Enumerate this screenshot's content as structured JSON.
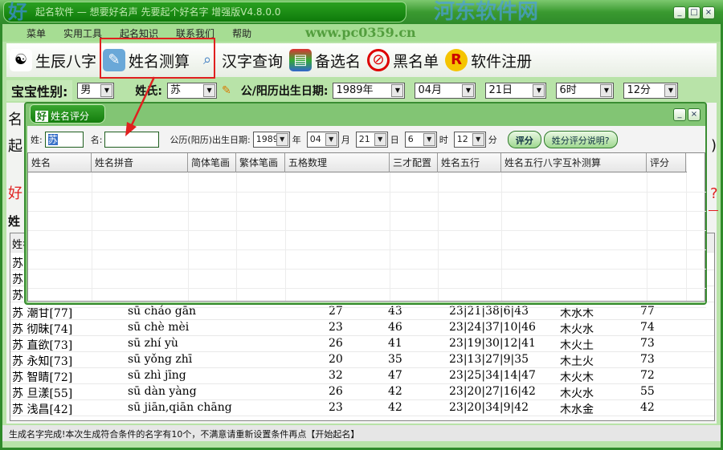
{
  "window": {
    "title": "起名软件 — 想要好名声 先要起个好名字 增强版V4.8.0.0",
    "logo_text": "好",
    "watermark": "河东软件网",
    "watermark_url": "www.pc0359.cn"
  },
  "menu": [
    "菜单",
    "实用工具",
    "起名知识",
    "联系我们",
    "帮助"
  ],
  "toolbar": [
    {
      "label": "生辰八字",
      "icon": "yin-yang-icon"
    },
    {
      "label": "姓名测算",
      "icon": "book-magnifier-icon"
    },
    {
      "label": "汉字查询",
      "icon": "magnifier-icon"
    },
    {
      "label": "备选名",
      "icon": "books-icon"
    },
    {
      "label": "黑名单",
      "icon": "prohibited-icon"
    },
    {
      "label": "软件注册",
      "icon": "registered-icon"
    }
  ],
  "form": {
    "gender_label": "宝宝性别:",
    "gender": "男",
    "surname_label": "姓氏:",
    "surname": "苏",
    "date_label": "公/阳历出生日期:",
    "year": "1989年",
    "month": "04月",
    "day": "21日",
    "hour": "6时",
    "minute": "12分"
  },
  "background": {
    "fragments": [
      "名",
      "起",
      "好",
      "姓",
      "姓名",
      ")",
      "?"
    ],
    "hidden_rows_surname": "苏"
  },
  "main_rows": [
    [
      "苏 潮甘[77]",
      "sū cháo gān",
      "27",
      "43",
      "23|21|38|6|43",
      "木水木",
      "77"
    ],
    [
      "苏 彻昧[74]",
      "sū chè mèi",
      "23",
      "46",
      "23|24|37|10|46",
      "木火水",
      "74"
    ],
    [
      "苏 直欲[73]",
      "sū zhí yù",
      "26",
      "41",
      "23|19|30|12|41",
      "木火土",
      "73"
    ],
    [
      "苏 永知[73]",
      "sū yǒng zhī",
      "20",
      "35",
      "23|13|27|9|35",
      "木土火",
      "73"
    ],
    [
      "苏 智睛[72]",
      "sū zhì jīng",
      "32",
      "47",
      "23|25|34|14|47",
      "木火木",
      "72"
    ],
    [
      "苏 旦漾[55]",
      "sū dàn yàng",
      "26",
      "42",
      "23|20|27|16|42",
      "木火水",
      "55"
    ],
    [
      "苏 浅昌[42]",
      "sū jiān,qiān chāng",
      "23",
      "42",
      "23|20|34|9|42",
      "木水金",
      "42"
    ]
  ],
  "status": "生成名字完成!本次生成符合条件的名字有10个，不满意请重新设置条件再点【开始起名】",
  "dialog": {
    "title": "姓名评分",
    "surname_label": "姓:",
    "surname": "苏",
    "name_label": "名:",
    "name": "",
    "date_label": "公历(阳历)出生日期:",
    "year": "1989",
    "year_unit": "年",
    "month": "04",
    "month_unit": "月",
    "day": "21",
    "day_unit": "日",
    "hour": "6",
    "hour_unit": "时",
    "minute": "12",
    "minute_unit": "分",
    "score_button": "评分",
    "help_button": "姓分评分说明?",
    "columns": [
      "姓名",
      "姓名拼音",
      "简体笔画",
      "繁体笔画",
      "五格数理",
      "三才配置",
      "姓名五行",
      "姓名五行八字互补测算",
      "评分"
    ]
  },
  "colors": {
    "accent": "#2f8a2a",
    "highlight": "#e0201f"
  }
}
